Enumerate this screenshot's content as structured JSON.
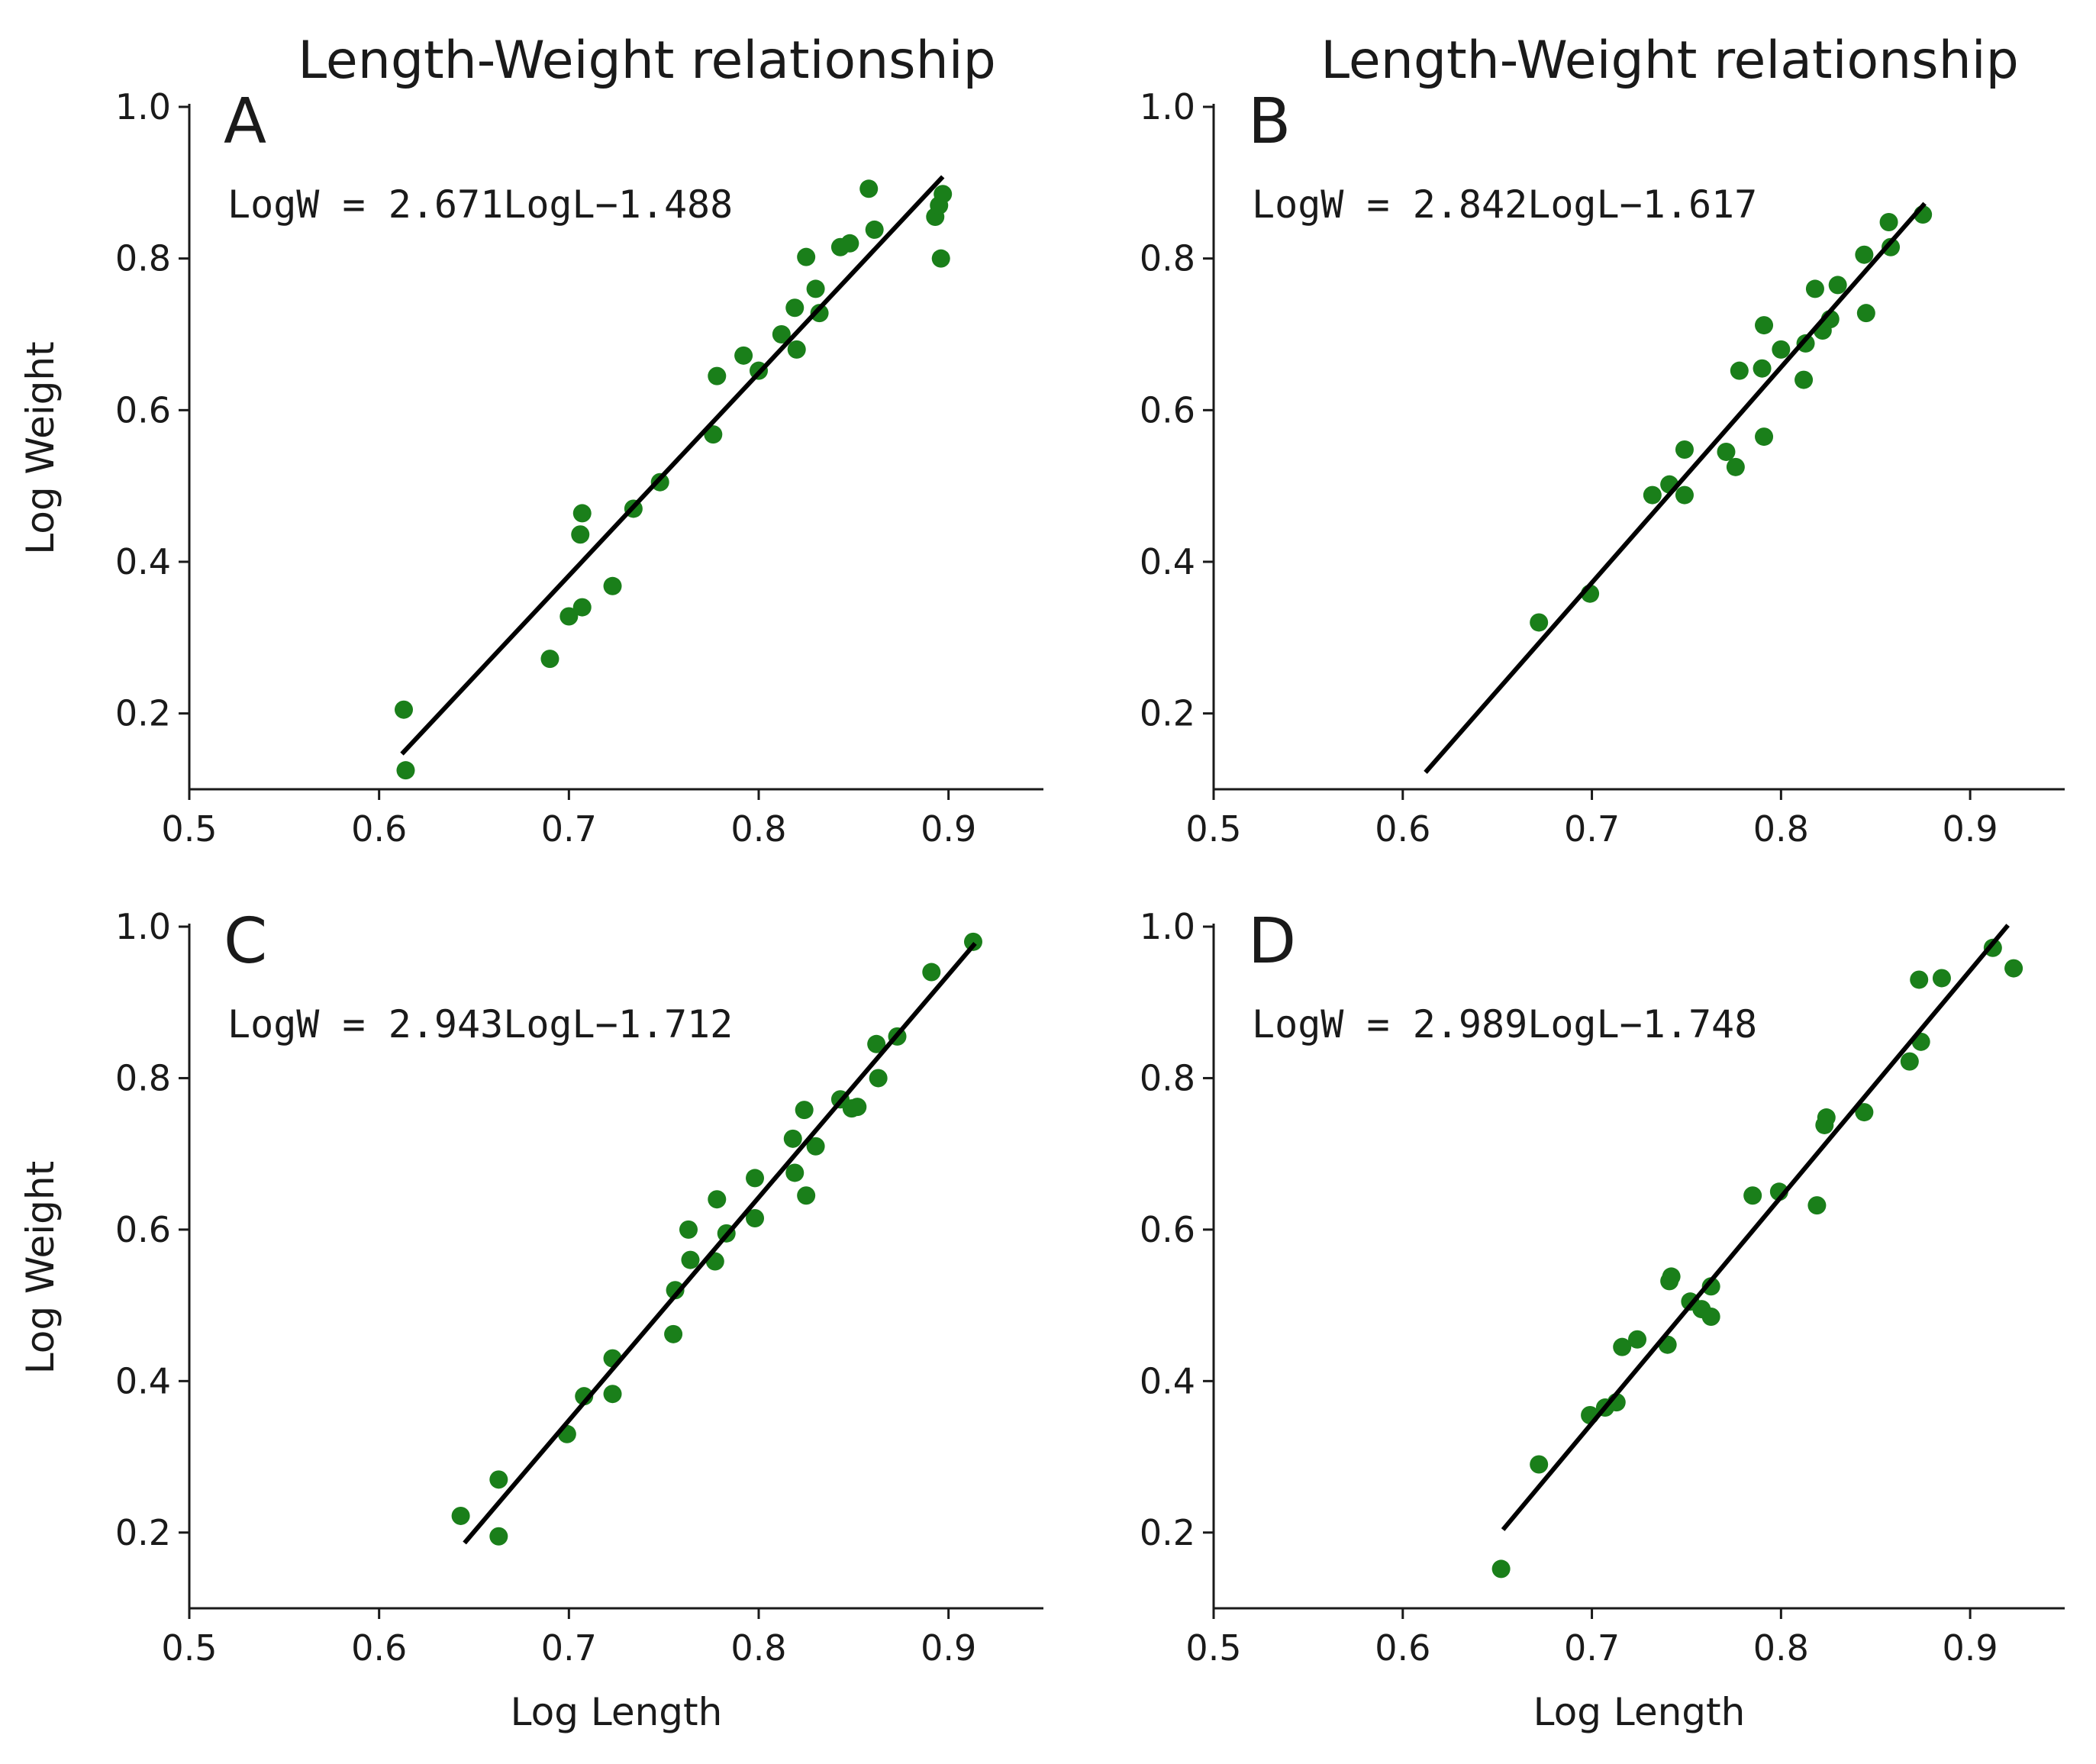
{
  "colors": {
    "points": "#1a7f1a",
    "line": "#000000",
    "text": "#1a1a1a"
  },
  "chart_data": [
    {
      "type": "scatter",
      "panel": "A",
      "title": "Length-Weight relationship",
      "equation": "LogW = 2.671LogL−1.488",
      "xlabel": "",
      "ylabel": "Log Weight",
      "xlim": [
        0.5,
        0.95
      ],
      "ylim": [
        0.1,
        1.0
      ],
      "xticks": [
        "0.5",
        "0.6",
        "0.7",
        "0.8",
        "0.9"
      ],
      "yticks": [
        "0.2",
        "0.4",
        "0.6",
        "0.8",
        "1.0"
      ],
      "fit": {
        "slope": 2.671,
        "intercept": -1.488,
        "x_range": [
          0.612,
          0.897
        ]
      },
      "points": [
        [
          0.613,
          0.205
        ],
        [
          0.614,
          0.125
        ],
        [
          0.69,
          0.272
        ],
        [
          0.7,
          0.328
        ],
        [
          0.707,
          0.34
        ],
        [
          0.706,
          0.436
        ],
        [
          0.707,
          0.464
        ],
        [
          0.723,
          0.368
        ],
        [
          0.734,
          0.47
        ],
        [
          0.748,
          0.505
        ],
        [
          0.776,
          0.568
        ],
        [
          0.778,
          0.645
        ],
        [
          0.792,
          0.672
        ],
        [
          0.8,
          0.652
        ],
        [
          0.812,
          0.7
        ],
        [
          0.819,
          0.735
        ],
        [
          0.82,
          0.68
        ],
        [
          0.825,
          0.802
        ],
        [
          0.83,
          0.76
        ],
        [
          0.832,
          0.728
        ],
        [
          0.843,
          0.815
        ],
        [
          0.848,
          0.82
        ],
        [
          0.858,
          0.892
        ],
        [
          0.861,
          0.838
        ],
        [
          0.893,
          0.855
        ],
        [
          0.895,
          0.87
        ],
        [
          0.897,
          0.885
        ],
        [
          0.896,
          0.8
        ]
      ]
    },
    {
      "type": "scatter",
      "panel": "B",
      "title": "Length-Weight relationship",
      "equation": "LogW = 2.842LogL−1.617",
      "xlabel": "",
      "ylabel": "",
      "xlim": [
        0.5,
        0.95
      ],
      "ylim": [
        0.1,
        1.0
      ],
      "xticks": [
        "0.5",
        "0.6",
        "0.7",
        "0.8",
        "0.9"
      ],
      "yticks": [
        "0.2",
        "0.4",
        "0.6",
        "0.8",
        "1.0"
      ],
      "fit": {
        "slope": 2.842,
        "intercept": -1.617,
        "x_range": [
          0.612,
          0.876
        ]
      },
      "points": [
        [
          0.672,
          0.32
        ],
        [
          0.699,
          0.358
        ],
        [
          0.732,
          0.488
        ],
        [
          0.741,
          0.502
        ],
        [
          0.749,
          0.488
        ],
        [
          0.749,
          0.548
        ],
        [
          0.771,
          0.545
        ],
        [
          0.776,
          0.525
        ],
        [
          0.778,
          0.652
        ],
        [
          0.791,
          0.712
        ],
        [
          0.79,
          0.655
        ],
        [
          0.791,
          0.565
        ],
        [
          0.8,
          0.68
        ],
        [
          0.812,
          0.64
        ],
        [
          0.813,
          0.688
        ],
        [
          0.818,
          0.76
        ],
        [
          0.822,
          0.705
        ],
        [
          0.826,
          0.72
        ],
        [
          0.83,
          0.765
        ],
        [
          0.844,
          0.805
        ],
        [
          0.845,
          0.728
        ],
        [
          0.857,
          0.848
        ],
        [
          0.858,
          0.815
        ],
        [
          0.875,
          0.858
        ]
      ]
    },
    {
      "type": "scatter",
      "panel": "C",
      "title": "",
      "equation": "LogW = 2.943LogL−1.712",
      "xlabel": "Log Length",
      "ylabel": "Log Weight",
      "xlim": [
        0.5,
        0.95
      ],
      "ylim": [
        0.1,
        1.0
      ],
      "xticks": [
        "0.5",
        "0.6",
        "0.7",
        "0.8",
        "0.9"
      ],
      "yticks": [
        "0.2",
        "0.4",
        "0.6",
        "0.8",
        "1.0"
      ],
      "fit": {
        "slope": 2.943,
        "intercept": -1.712,
        "x_range": [
          0.645,
          0.914
        ]
      },
      "points": [
        [
          0.643,
          0.222
        ],
        [
          0.663,
          0.27
        ],
        [
          0.663,
          0.195
        ],
        [
          0.699,
          0.33
        ],
        [
          0.708,
          0.38
        ],
        [
          0.723,
          0.383
        ],
        [
          0.723,
          0.43
        ],
        [
          0.755,
          0.462
        ],
        [
          0.756,
          0.52
        ],
        [
          0.763,
          0.6
        ],
        [
          0.764,
          0.56
        ],
        [
          0.777,
          0.558
        ],
        [
          0.778,
          0.64
        ],
        [
          0.783,
          0.595
        ],
        [
          0.798,
          0.615
        ],
        [
          0.798,
          0.668
        ],
        [
          0.818,
          0.72
        ],
        [
          0.819,
          0.675
        ],
        [
          0.824,
          0.758
        ],
        [
          0.825,
          0.645
        ],
        [
          0.83,
          0.71
        ],
        [
          0.843,
          0.772
        ],
        [
          0.849,
          0.76
        ],
        [
          0.852,
          0.762
        ],
        [
          0.862,
          0.845
        ],
        [
          0.863,
          0.8
        ],
        [
          0.873,
          0.855
        ],
        [
          0.891,
          0.94
        ],
        [
          0.913,
          0.98
        ]
      ]
    },
    {
      "type": "scatter",
      "panel": "D",
      "title": "",
      "equation": "LogW = 2.989LogL−1.748",
      "xlabel": "Log Length",
      "ylabel": "",
      "xlim": [
        0.5,
        0.95
      ],
      "ylim": [
        0.1,
        1.0
      ],
      "xticks": [
        "0.5",
        "0.6",
        "0.7",
        "0.8",
        "0.9"
      ],
      "yticks": [
        "0.2",
        "0.4",
        "0.6",
        "0.8",
        "1.0"
      ],
      "fit": {
        "slope": 2.989,
        "intercept": -1.748,
        "x_range": [
          0.653,
          0.92
        ]
      },
      "points": [
        [
          0.652,
          0.152
        ],
        [
          0.672,
          0.29
        ],
        [
          0.699,
          0.355
        ],
        [
          0.707,
          0.365
        ],
        [
          0.713,
          0.372
        ],
        [
          0.716,
          0.445
        ],
        [
          0.724,
          0.455
        ],
        [
          0.74,
          0.448
        ],
        [
          0.741,
          0.532
        ],
        [
          0.742,
          0.538
        ],
        [
          0.752,
          0.505
        ],
        [
          0.758,
          0.495
        ],
        [
          0.763,
          0.485
        ],
        [
          0.763,
          0.525
        ],
        [
          0.785,
          0.645
        ],
        [
          0.799,
          0.65
        ],
        [
          0.819,
          0.632
        ],
        [
          0.823,
          0.738
        ],
        [
          0.824,
          0.748
        ],
        [
          0.844,
          0.755
        ],
        [
          0.868,
          0.822
        ],
        [
          0.873,
          0.93
        ],
        [
          0.874,
          0.848
        ],
        [
          0.885,
          0.932
        ],
        [
          0.912,
          0.972
        ],
        [
          0.923,
          0.945
        ]
      ]
    }
  ]
}
